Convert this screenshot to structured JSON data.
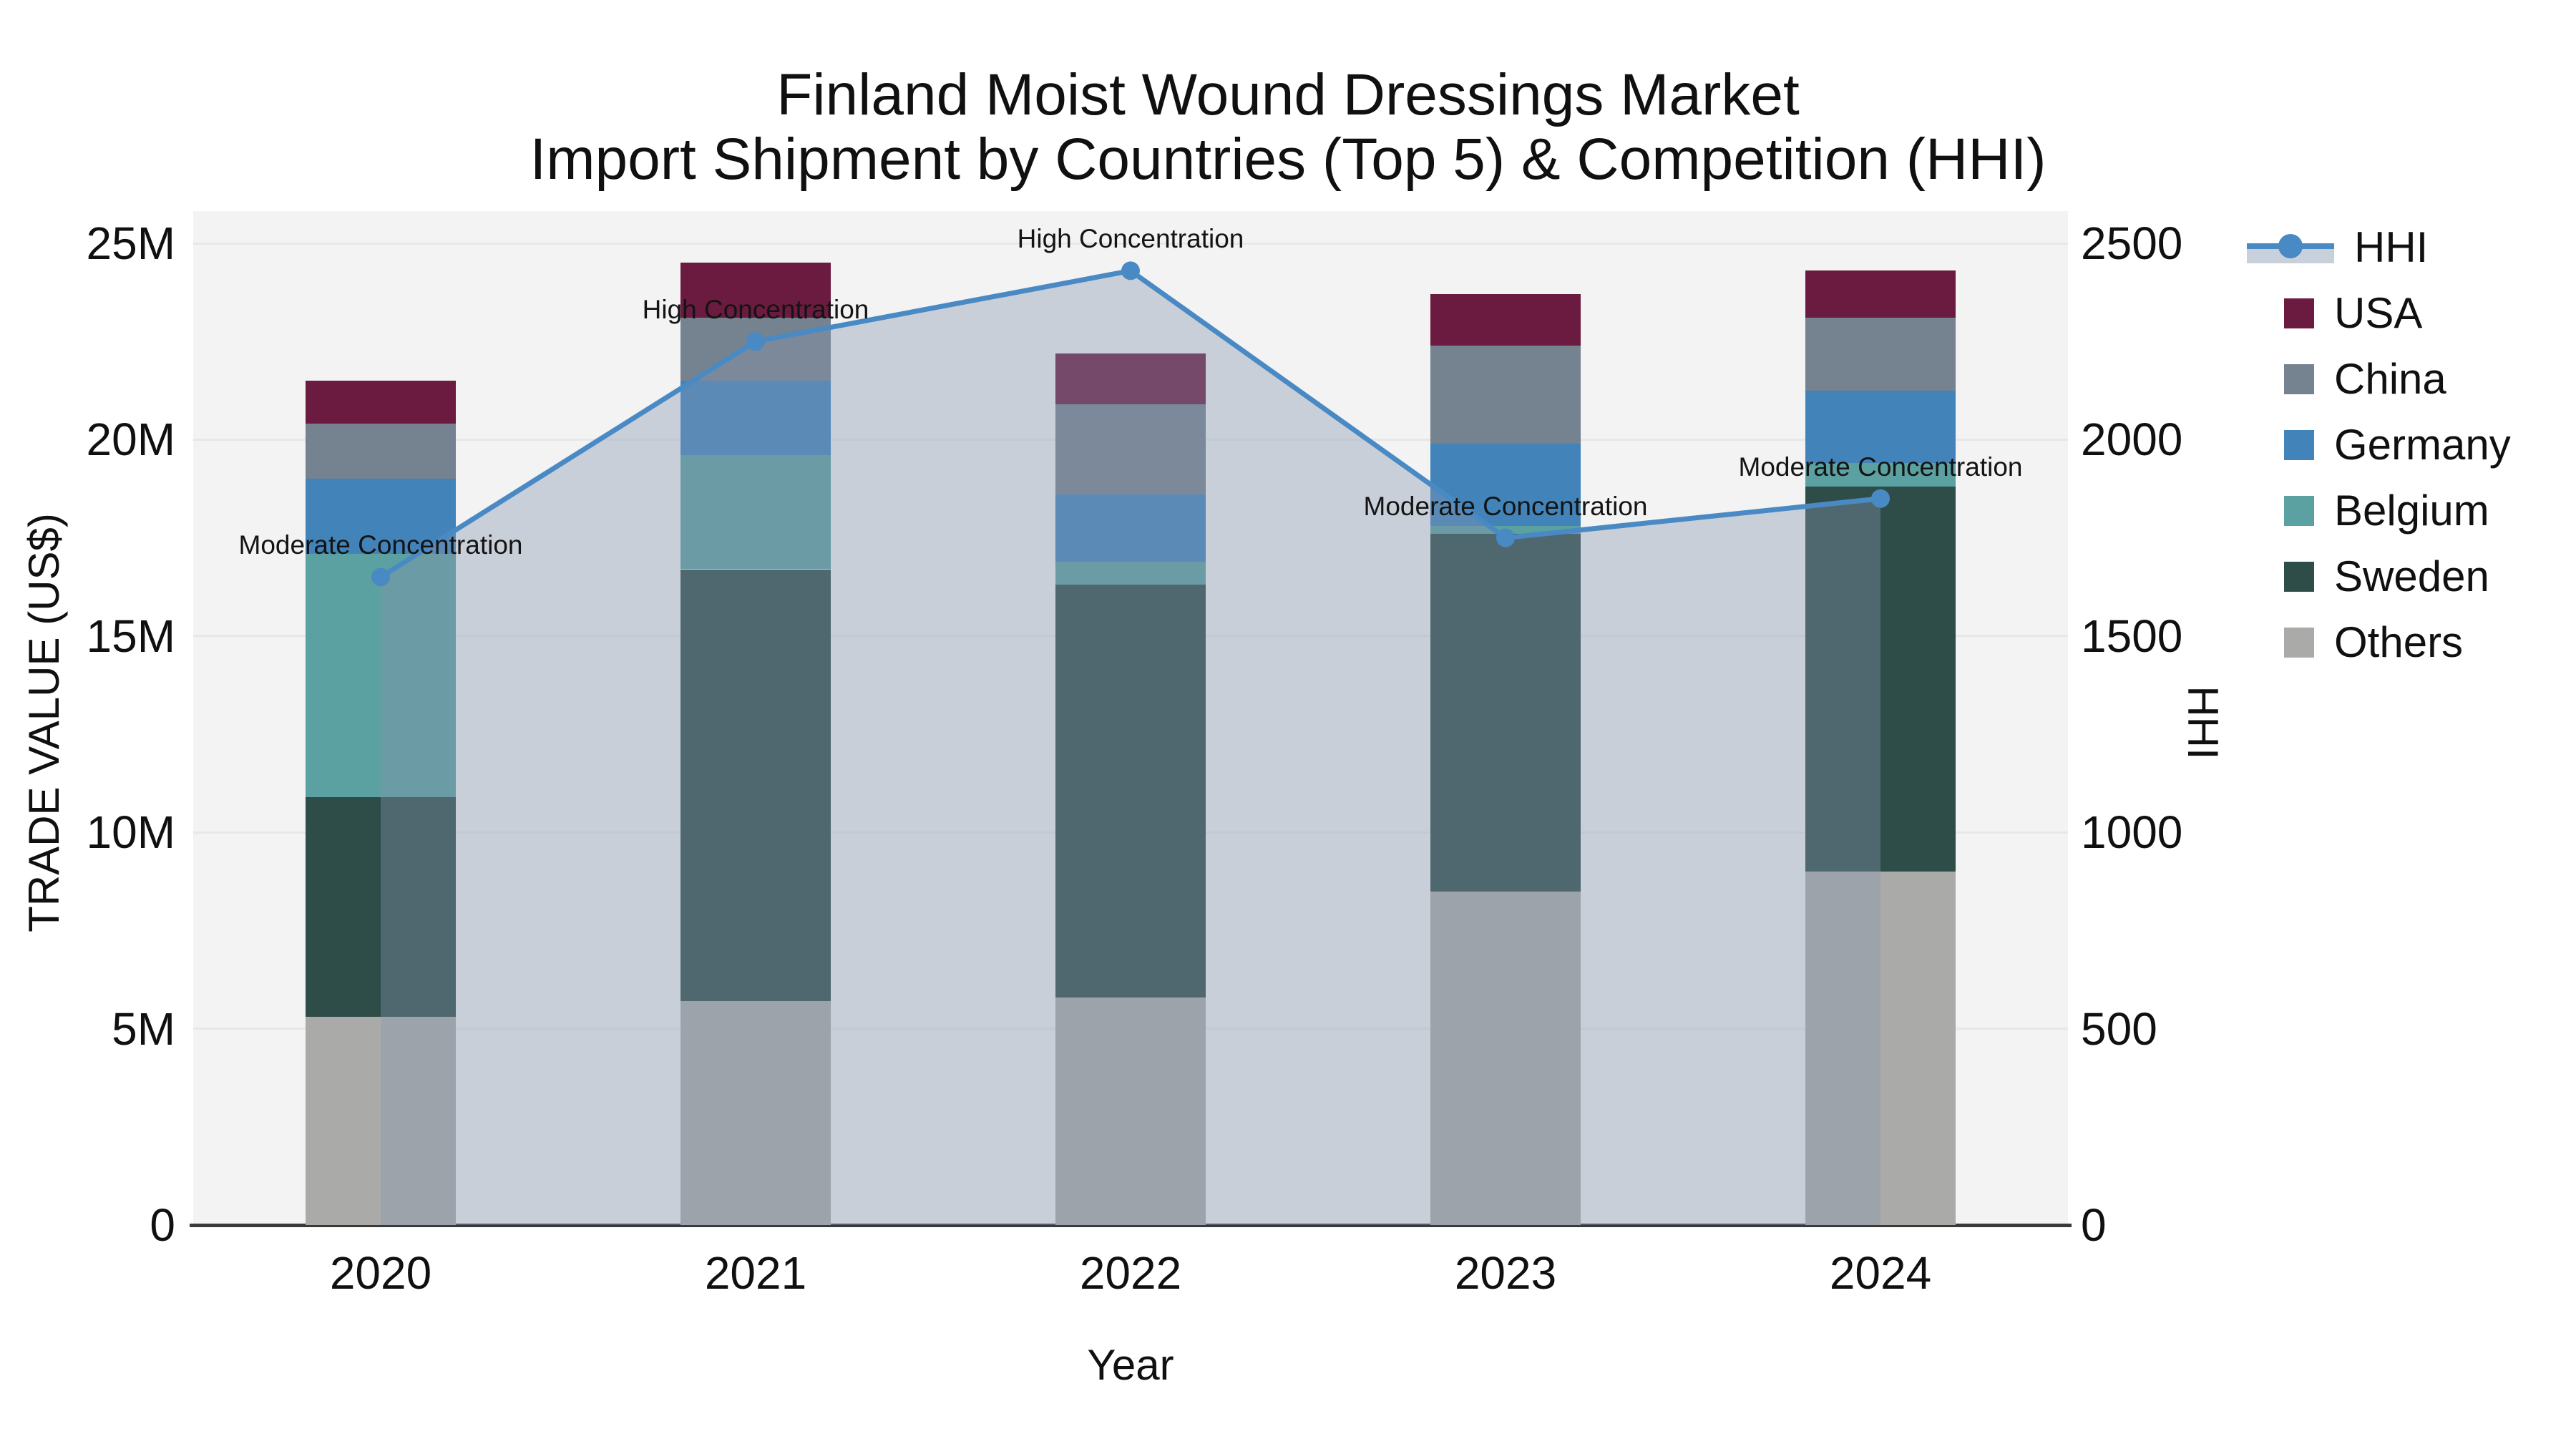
{
  "title": {
    "line1": "Finland Moist Wound Dressings Market",
    "line2": "Import Shipment by Countries (Top 5) & Competition (HHI)"
  },
  "x_axis": {
    "title": "Year",
    "ticks": [
      "2020",
      "2021",
      "2022",
      "2023",
      "2024"
    ]
  },
  "y_left": {
    "title": "TRADE VALUE (US$)",
    "ticks": [
      "0",
      "5M",
      "10M",
      "15M",
      "20M",
      "25M"
    ],
    "tick_values_m": [
      0,
      5,
      10,
      15,
      20,
      25
    ]
  },
  "y_right": {
    "title": "HHI",
    "ticks": [
      "0",
      "500",
      "1000",
      "1500",
      "2000",
      "2500"
    ],
    "tick_values": [
      0,
      500,
      1000,
      1500,
      2000,
      2500
    ]
  },
  "legend": [
    {
      "label": "HHI",
      "kind": "line"
    },
    {
      "label": "USA",
      "kind": "swatch"
    },
    {
      "label": "China",
      "kind": "swatch"
    },
    {
      "label": "Germany",
      "kind": "swatch"
    },
    {
      "label": "Belgium",
      "kind": "swatch"
    },
    {
      "label": "Sweden",
      "kind": "swatch"
    },
    {
      "label": "Others",
      "kind": "swatch"
    }
  ],
  "colors": {
    "HHI": "#4a8ac4",
    "USA": "#6b1b3f",
    "China": "#75828f",
    "Germany": "#4284ba",
    "Belgium": "#5ba1a1",
    "Sweden": "#2e4d49",
    "Others": "#aaaba9",
    "hhi_fill": "rgba(134,150,176,0.38)",
    "plot_bg": "#f3f3f3",
    "grid": "#e6e8e8",
    "axis_line": "#3a3a3a"
  },
  "chart_data": {
    "type": "bar",
    "subtype": "stacked-bars-with-hhi-line",
    "title": "Finland Moist Wound Dressings Market — Import Shipment by Countries (Top 5) & Competition (HHI)",
    "categories": [
      "2020",
      "2021",
      "2022",
      "2023",
      "2024"
    ],
    "value_unit": "million US$",
    "stack_order_bottom_to_top": [
      "Others",
      "Sweden",
      "Belgium",
      "Germany",
      "China",
      "USA"
    ],
    "series": [
      {
        "name": "Others",
        "values": [
          5.3,
          5.7,
          5.8,
          8.5,
          9.0
        ]
      },
      {
        "name": "Sweden",
        "values": [
          5.6,
          11.0,
          10.5,
          9.1,
          9.8
        ]
      },
      {
        "name": "Belgium",
        "values": [
          6.2,
          2.9,
          0.6,
          0.2,
          0.6
        ]
      },
      {
        "name": "Germany",
        "values": [
          1.9,
          1.9,
          1.7,
          2.1,
          1.85
        ]
      },
      {
        "name": "China",
        "values": [
          1.4,
          1.6,
          2.3,
          2.5,
          1.85
        ]
      },
      {
        "name": "USA",
        "values": [
          1.1,
          1.4,
          1.3,
          1.3,
          1.2
        ]
      }
    ],
    "bar_totals_m": [
      21.5,
      24.5,
      22.2,
      23.7,
      24.3
    ],
    "line_series": {
      "name": "HHI",
      "axis": "right",
      "fill": "tozeroy",
      "values": [
        1650,
        2250,
        2430,
        1750,
        1850
      ]
    },
    "annotations": [
      "Moderate Concentration",
      "High Concentration",
      "High Concentration",
      "Moderate Concentration",
      "Moderate Concentration"
    ],
    "xlabel": "Year",
    "ylabel_left": "TRADE VALUE (US$)",
    "ylabel_right": "HHI",
    "y_left_range_m": [
      0,
      25
    ],
    "y_right_range": [
      0,
      2500
    ],
    "grid": true,
    "legend_position": "right"
  }
}
